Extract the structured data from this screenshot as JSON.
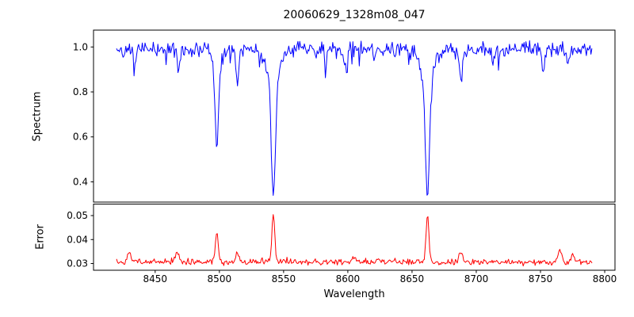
{
  "chart_data": {
    "type": "line",
    "title": "20060629_1328m08_047",
    "xlabel": "Wavelength",
    "xlim": [
      8402,
      8808
    ],
    "x_range": [
      8420,
      8790
    ],
    "x_ticks": [
      {
        "value": 8450,
        "label": "8450"
      },
      {
        "value": 8500,
        "label": "8500"
      },
      {
        "value": 8550,
        "label": "8550"
      },
      {
        "value": 8600,
        "label": "8600"
      },
      {
        "value": 8650,
        "label": "8650"
      },
      {
        "value": 8700,
        "label": "8700"
      },
      {
        "value": 8750,
        "label": "8750"
      },
      {
        "value": 8800,
        "label": "8800"
      }
    ],
    "grid": false,
    "legend": "none",
    "subplots": [
      {
        "kind": "spectrum",
        "ylabel": "Spectrum",
        "color": "#0000ff",
        "ylim": [
          0.31,
          1.075
        ],
        "baseline": 0.99,
        "y_ticks": [
          {
            "value": 0.4,
            "label": "0.4"
          },
          {
            "value": 0.6,
            "label": "0.6"
          },
          {
            "value": 0.8,
            "label": "0.8"
          },
          {
            "value": 1.0,
            "label": "1.0"
          }
        ],
        "absorption_lines": [
          {
            "center": 8434,
            "depth": 0.07,
            "width": 1.5
          },
          {
            "center": 8468,
            "depth": 0.1,
            "width": 1.5
          },
          {
            "center": 8498,
            "depth": 0.4,
            "width": 1.8
          },
          {
            "center": 8498,
            "depth": 0.08,
            "width": 5.0
          },
          {
            "center": 8514,
            "depth": 0.17,
            "width": 1.5
          },
          {
            "center": 8542,
            "depth": 0.6,
            "width": 2.2
          },
          {
            "center": 8542,
            "depth": 0.15,
            "width": 7.0
          },
          {
            "center": 8583,
            "depth": 0.06,
            "width": 1.3
          },
          {
            "center": 8598,
            "depth": 0.08,
            "width": 1.5
          },
          {
            "center": 8621,
            "depth": 0.07,
            "width": 1.3
          },
          {
            "center": 8648,
            "depth": 0.05,
            "width": 1.3
          },
          {
            "center": 8662,
            "depth": 0.6,
            "width": 2.2
          },
          {
            "center": 8662,
            "depth": 0.15,
            "width": 7.0
          },
          {
            "center": 8688,
            "depth": 0.15,
            "width": 1.6
          },
          {
            "center": 8713,
            "depth": 0.07,
            "width": 1.3
          },
          {
            "center": 8752,
            "depth": 0.1,
            "width": 1.5
          },
          {
            "center": 8772,
            "depth": 0.06,
            "width": 1.3
          }
        ],
        "noise": {
          "seed": 42,
          "amplitude": 0.04,
          "spike_prob": 0.06,
          "spike_depth": 0.08,
          "points": 520
        }
      },
      {
        "kind": "error",
        "ylabel": "Error",
        "color": "#ff0000",
        "ylim": [
          0.0272,
          0.0548
        ],
        "baseline": 0.0301,
        "y_ticks": [
          {
            "value": 0.03,
            "label": "0.03"
          },
          {
            "value": 0.04,
            "label": "0.04"
          },
          {
            "value": 0.05,
            "label": "0.05"
          }
        ],
        "peaks": [
          {
            "center": 8430,
            "height": 0.0045,
            "width": 2.0
          },
          {
            "center": 8467,
            "height": 0.004,
            "width": 2.0
          },
          {
            "center": 8498,
            "height": 0.012,
            "width": 1.6
          },
          {
            "center": 8514,
            "height": 0.004,
            "width": 1.8
          },
          {
            "center": 8542,
            "height": 0.021,
            "width": 1.5
          },
          {
            "center": 8605,
            "height": 0.0025,
            "width": 2.0
          },
          {
            "center": 8662,
            "height": 0.0205,
            "width": 1.5
          },
          {
            "center": 8688,
            "height": 0.004,
            "width": 1.8
          },
          {
            "center": 8765,
            "height": 0.005,
            "width": 2.0
          },
          {
            "center": 8775,
            "height": 0.004,
            "width": 1.6
          }
        ],
        "noise": {
          "seed": 1337,
          "amplitude": 0.0012,
          "abs_amplitude": 0.0018,
          "points": 520
        }
      }
    ]
  }
}
